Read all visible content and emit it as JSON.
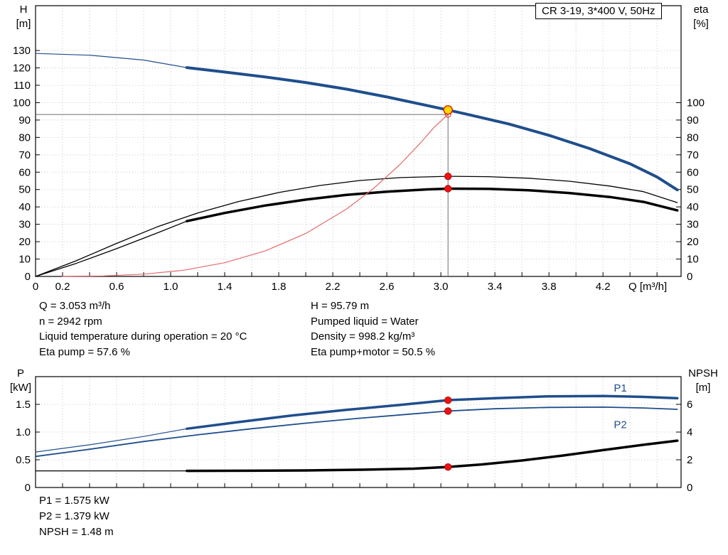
{
  "header": {
    "title_box": "CR 3-19, 3*400 V, 50Hz"
  },
  "operating_point_info": {
    "left": [
      "Q = 3.053 m³/h",
      "n = 2942 rpm",
      "Liquid temperature during operation = 20 °C",
      "Eta pump = 57.6 %"
    ],
    "right": [
      "H = 95.79 m",
      "Pumped liquid = Water",
      "Density = 998.2 kg/m³",
      "Eta pump+motor = 50.5 %"
    ]
  },
  "power_info": [
    "P1 = 1.575 kW",
    "P2 = 1.379 kW",
    "NPSH = 1.48 m"
  ],
  "colors": {
    "curve_blue": "#1f4e8c",
    "curve_black": "#000000",
    "system_red": "#e46a6a",
    "marker_red": "#ee1111",
    "duty_yellow": "#ffd800",
    "grid": "#c8c8c8",
    "crosshair": "#6e6e6e"
  },
  "chart_data": [
    {
      "type": "line",
      "title": "CR 3-19, 3*400 V, 50Hz",
      "xlabel": "Q [m³/h]",
      "x_axis": {
        "min": 0,
        "max": 4.778,
        "grid_step": 0.2,
        "tick_values": [
          0,
          0.2,
          0.6,
          1.0,
          1.4,
          1.8,
          2.2,
          2.6,
          3.0,
          3.4,
          3.8,
          4.2
        ],
        "tick_labels": [
          "0",
          "0.2",
          "0.6",
          "1.0",
          "1.4",
          "1.8",
          "2.2",
          "2.6",
          "3.0",
          "3.4",
          "3.8",
          "4.2"
        ]
      },
      "y_left": {
        "label_lines": [
          "H",
          "[m]"
        ],
        "min": 0,
        "max": 155.8,
        "tick_step": 10,
        "tick_max": 130,
        "tick_decimals": 0
      },
      "y_right": {
        "label_lines": [
          "eta",
          "[%]"
        ],
        "min": 0,
        "max": 155.8,
        "tick_step": 10,
        "tick_max": 100,
        "tick_decimals": 0
      },
      "grid_color": "#c8c8c8",
      "series": [
        {
          "name": "hq-curve-lead",
          "axis": "left",
          "color": "#1f4e8c",
          "width": 1.2,
          "points": [
            [
              0,
              128.3
            ],
            [
              0.4,
              127.3
            ],
            [
              0.8,
              124.5
            ],
            [
              1.12,
              120.2
            ]
          ]
        },
        {
          "name": "hq-curve",
          "axis": "left",
          "color": "#1f4e8c",
          "width": 4,
          "points": [
            [
              1.12,
              120.2
            ],
            [
              1.4,
              117.6
            ],
            [
              1.7,
              114.8
            ],
            [
              2.0,
              111.6
            ],
            [
              2.3,
              107.8
            ],
            [
              2.6,
              103.3
            ],
            [
              2.9,
              98.3
            ],
            [
              3.053,
              95.79
            ],
            [
              3.2,
              93.2
            ],
            [
              3.5,
              87.8
            ],
            [
              3.8,
              81.2
            ],
            [
              4.1,
              73.6
            ],
            [
              4.4,
              64.8
            ],
            [
              4.6,
              57.2
            ],
            [
              4.75,
              49.8
            ]
          ]
        },
        {
          "name": "eta-pump-curve",
          "axis": "right",
          "color": "#000000",
          "width": 1.3,
          "points": [
            [
              0,
              0
            ],
            [
              0.3,
              9
            ],
            [
              0.6,
              19
            ],
            [
              0.9,
              28.5
            ],
            [
              1.2,
              36.5
            ],
            [
              1.5,
              43
            ],
            [
              1.8,
              48.3
            ],
            [
              2.1,
              52.3
            ],
            [
              2.4,
              55.2
            ],
            [
              2.7,
              56.9
            ],
            [
              3.053,
              57.6
            ],
            [
              3.35,
              57.4
            ],
            [
              3.65,
              56.5
            ],
            [
              3.95,
              54.8
            ],
            [
              4.25,
              52
            ],
            [
              4.5,
              48.8
            ],
            [
              4.75,
              42.5
            ]
          ]
        },
        {
          "name": "eta-pump-motor-curve-lead",
          "axis": "right",
          "color": "#000000",
          "width": 1.3,
          "points": [
            [
              0,
              0
            ],
            [
              0.3,
              7.5
            ],
            [
              0.6,
              16
            ],
            [
              0.9,
              25
            ],
            [
              1.12,
              31.8
            ]
          ]
        },
        {
          "name": "eta-pump-motor-curve",
          "axis": "right",
          "color": "#000000",
          "width": 3.5,
          "points": [
            [
              1.12,
              31.8
            ],
            [
              1.4,
              36.5
            ],
            [
              1.7,
              40.8
            ],
            [
              2.0,
              44.2
            ],
            [
              2.3,
              46.9
            ],
            [
              2.6,
              48.8
            ],
            [
              2.9,
              50.1
            ],
            [
              3.053,
              50.5
            ],
            [
              3.35,
              50.4
            ],
            [
              3.65,
              49.6
            ],
            [
              3.95,
              48
            ],
            [
              4.25,
              45.7
            ],
            [
              4.5,
              42.9
            ],
            [
              4.75,
              38
            ]
          ]
        },
        {
          "name": "system-curve",
          "axis": "left",
          "color": "#e46a6a",
          "width": 1.2,
          "points": [
            [
              0.2,
              0.05
            ],
            [
              0.5,
              0.3
            ],
            [
              0.8,
              1.3
            ],
            [
              1.1,
              3.6
            ],
            [
              1.4,
              7.9
            ],
            [
              1.7,
              14.7
            ],
            [
              2.0,
              24.7
            ],
            [
              2.3,
              38.7
            ],
            [
              2.5,
              50.5
            ],
            [
              2.7,
              64.6
            ],
            [
              2.85,
              76.9
            ],
            [
              2.95,
              85.8
            ],
            [
              3.053,
              93.2
            ]
          ]
        }
      ],
      "crosshair": {
        "color": "#6e6e6e",
        "lines": [
          {
            "x1": 3.053,
            "y1": 0,
            "x2": 3.053,
            "y2": 95.79,
            "axis": "left"
          },
          {
            "x1": 0,
            "y1": 93.2,
            "x2": 3.053,
            "y2": 93.2,
            "axis": "left"
          }
        ]
      },
      "markers": [
        {
          "name": "system-curve-endpoint",
          "x": 3.053,
          "y": 93.2,
          "axis": "left",
          "r": 4,
          "fill": "none",
          "stroke": "#e05050",
          "stroke_width": 1.3
        },
        {
          "name": "duty-point-marker",
          "x": 3.053,
          "y": 95.79,
          "axis": "left",
          "r": 6,
          "fill": "#ffd800",
          "stroke": "#e03000",
          "stroke_width": 1.6
        },
        {
          "name": "eta-pump-duty-marker",
          "x": 3.053,
          "y": 57.6,
          "axis": "right",
          "r": 4.8,
          "fill": "#ee1111",
          "stroke": "#aa0000",
          "stroke_width": 0.8
        },
        {
          "name": "eta-pump-motor-duty-marker",
          "x": 3.053,
          "y": 50.5,
          "axis": "right",
          "r": 4.8,
          "fill": "#ee1111",
          "stroke": "#aa0000",
          "stroke_width": 0.8
        }
      ],
      "labels": []
    },
    {
      "type": "line",
      "xlabel": "",
      "x_axis": {
        "min": 0,
        "max": 4.778,
        "grid_step": 0.2,
        "tick_values": [],
        "tick_labels": []
      },
      "y_left": {
        "label_lines": [
          "P",
          "[kW]"
        ],
        "min": 0,
        "max": 2,
        "tick_step": 0.5,
        "tick_max": 1.5,
        "tick_decimals": 1
      },
      "y_right": {
        "label_lines": [
          "NPSH",
          "[m]"
        ],
        "min": 0,
        "max": 8,
        "tick_step": 2,
        "tick_max": 6,
        "tick_decimals": 0
      },
      "grid_color": "#c8c8c8",
      "series": [
        {
          "name": "p1-curve-lead",
          "axis": "left",
          "color": "#1f4e8c",
          "width": 1.2,
          "points": [
            [
              0,
              0.64
            ],
            [
              0.4,
              0.77
            ],
            [
              0.8,
              0.92
            ],
            [
              1.12,
              1.06
            ]
          ]
        },
        {
          "name": "p1-curve",
          "axis": "left",
          "color": "#1f4e8c",
          "width": 3.5,
          "points": [
            [
              1.12,
              1.06
            ],
            [
              1.5,
              1.18
            ],
            [
              1.9,
              1.3
            ],
            [
              2.3,
              1.4
            ],
            [
              2.7,
              1.49
            ],
            [
              3.053,
              1.575
            ],
            [
              3.4,
              1.61
            ],
            [
              3.8,
              1.645
            ],
            [
              4.2,
              1.65
            ],
            [
              4.5,
              1.635
            ],
            [
              4.75,
              1.61
            ]
          ]
        },
        {
          "name": "p2-curve",
          "axis": "left",
          "color": "#1f4e8c",
          "width": 1.8,
          "points": [
            [
              0,
              0.56
            ],
            [
              0.4,
              0.69
            ],
            [
              0.8,
              0.83
            ],
            [
              1.2,
              0.95
            ],
            [
              1.6,
              1.06
            ],
            [
              2.0,
              1.16
            ],
            [
              2.4,
              1.25
            ],
            [
              2.8,
              1.33
            ],
            [
              3.053,
              1.379
            ],
            [
              3.4,
              1.42
            ],
            [
              3.8,
              1.445
            ],
            [
              4.2,
              1.45
            ],
            [
              4.5,
              1.435
            ],
            [
              4.75,
              1.41
            ]
          ]
        },
        {
          "name": "npsh-curve-lead",
          "axis": "right",
          "color": "#000000",
          "width": 1.2,
          "points": [
            [
              0,
              1.2
            ],
            [
              0.6,
              1.2
            ],
            [
              1.12,
              1.2
            ]
          ]
        },
        {
          "name": "npsh-curve",
          "axis": "right",
          "color": "#000000",
          "width": 3.5,
          "points": [
            [
              1.12,
              1.2
            ],
            [
              1.6,
              1.21
            ],
            [
              2.0,
              1.23
            ],
            [
              2.4,
              1.28
            ],
            [
              2.8,
              1.36
            ],
            [
              3.053,
              1.48
            ],
            [
              3.3,
              1.66
            ],
            [
              3.6,
              1.95
            ],
            [
              3.9,
              2.3
            ],
            [
              4.2,
              2.7
            ],
            [
              4.5,
              3.08
            ],
            [
              4.75,
              3.38
            ]
          ]
        }
      ],
      "crosshair": {
        "color": "#6e6e6e",
        "lines": []
      },
      "markers": [
        {
          "name": "p1-duty-marker",
          "x": 3.053,
          "y": 1.575,
          "axis": "left",
          "r": 4.8,
          "fill": "#ee1111",
          "stroke": "#aa0000",
          "stroke_width": 0.8
        },
        {
          "name": "p2-duty-marker",
          "x": 3.053,
          "y": 1.379,
          "axis": "left",
          "r": 4.8,
          "fill": "#ee1111",
          "stroke": "#aa0000",
          "stroke_width": 0.8
        },
        {
          "name": "npsh-duty-marker",
          "x": 3.053,
          "y": 1.48,
          "axis": "right",
          "r": 4.8,
          "fill": "#ee1111",
          "stroke": "#aa0000",
          "stroke_width": 0.8
        }
      ],
      "labels": [
        {
          "name": "p1-curve-label",
          "x": 4.28,
          "y": 1.73,
          "axis": "left",
          "text": "P1",
          "color": "#1f4e8c"
        },
        {
          "name": "p2-curve-label",
          "x": 4.28,
          "y": 1.07,
          "axis": "left",
          "text": "P2",
          "color": "#1f4e8c"
        }
      ]
    }
  ]
}
